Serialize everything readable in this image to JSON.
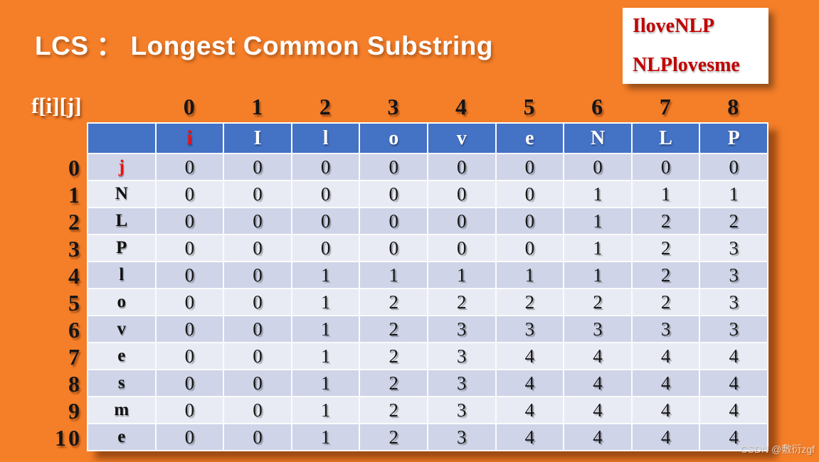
{
  "slide": {
    "title": "LCS ： Longest Common Substring",
    "corner_card": {
      "line1": "IloveNLP",
      "line2": "NLPlovesme"
    },
    "matrix_label": "f[i][j]",
    "watermark": "CSDN @敷衍zgf"
  },
  "colors": {
    "background": "#F57E28",
    "header_blue": "#4472C4",
    "row_band_dark": "#CFD4E8",
    "row_band_light": "#E9EBF4",
    "red_letter": "#F20D0D",
    "card_red": "#C00000"
  },
  "matrix": {
    "column_indices": [
      "0",
      "1",
      "2",
      "3",
      "4",
      "5",
      "6",
      "7",
      "8"
    ],
    "row_indices": [
      "0",
      "1",
      "2",
      "3",
      "4",
      "5",
      "6",
      "7",
      "8",
      "9",
      "10"
    ],
    "header_letters": [
      "i",
      "I",
      "l",
      "o",
      "v",
      "e",
      "N",
      "L",
      "P"
    ],
    "header_red_index": 0,
    "rows": [
      {
        "letter": "j",
        "letter_red": true,
        "values": [
          "0",
          "0",
          "0",
          "0",
          "0",
          "0",
          "0",
          "0",
          "0"
        ]
      },
      {
        "letter": "N",
        "letter_red": false,
        "values": [
          "0",
          "0",
          "0",
          "0",
          "0",
          "0",
          "1",
          "1",
          "1"
        ]
      },
      {
        "letter": "L",
        "letter_red": false,
        "values": [
          "0",
          "0",
          "0",
          "0",
          "0",
          "0",
          "1",
          "2",
          "2"
        ]
      },
      {
        "letter": "P",
        "letter_red": false,
        "values": [
          "0",
          "0",
          "0",
          "0",
          "0",
          "0",
          "1",
          "2",
          "3"
        ]
      },
      {
        "letter": "l",
        "letter_red": false,
        "values": [
          "0",
          "0",
          "1",
          "1",
          "1",
          "1",
          "1",
          "2",
          "3"
        ]
      },
      {
        "letter": "o",
        "letter_red": false,
        "values": [
          "0",
          "0",
          "1",
          "2",
          "2",
          "2",
          "2",
          "2",
          "3"
        ]
      },
      {
        "letter": "v",
        "letter_red": false,
        "values": [
          "0",
          "0",
          "1",
          "2",
          "3",
          "3",
          "3",
          "3",
          "3"
        ]
      },
      {
        "letter": "e",
        "letter_red": false,
        "values": [
          "0",
          "0",
          "1",
          "2",
          "3",
          "4",
          "4",
          "4",
          "4"
        ]
      },
      {
        "letter": "s",
        "letter_red": false,
        "values": [
          "0",
          "0",
          "1",
          "2",
          "3",
          "4",
          "4",
          "4",
          "4"
        ]
      },
      {
        "letter": "m",
        "letter_red": false,
        "values": [
          "0",
          "0",
          "1",
          "2",
          "3",
          "4",
          "4",
          "4",
          "4"
        ]
      },
      {
        "letter": "e",
        "letter_red": false,
        "values": [
          "0",
          "0",
          "1",
          "2",
          "3",
          "4",
          "4",
          "4",
          "4"
        ]
      }
    ]
  }
}
